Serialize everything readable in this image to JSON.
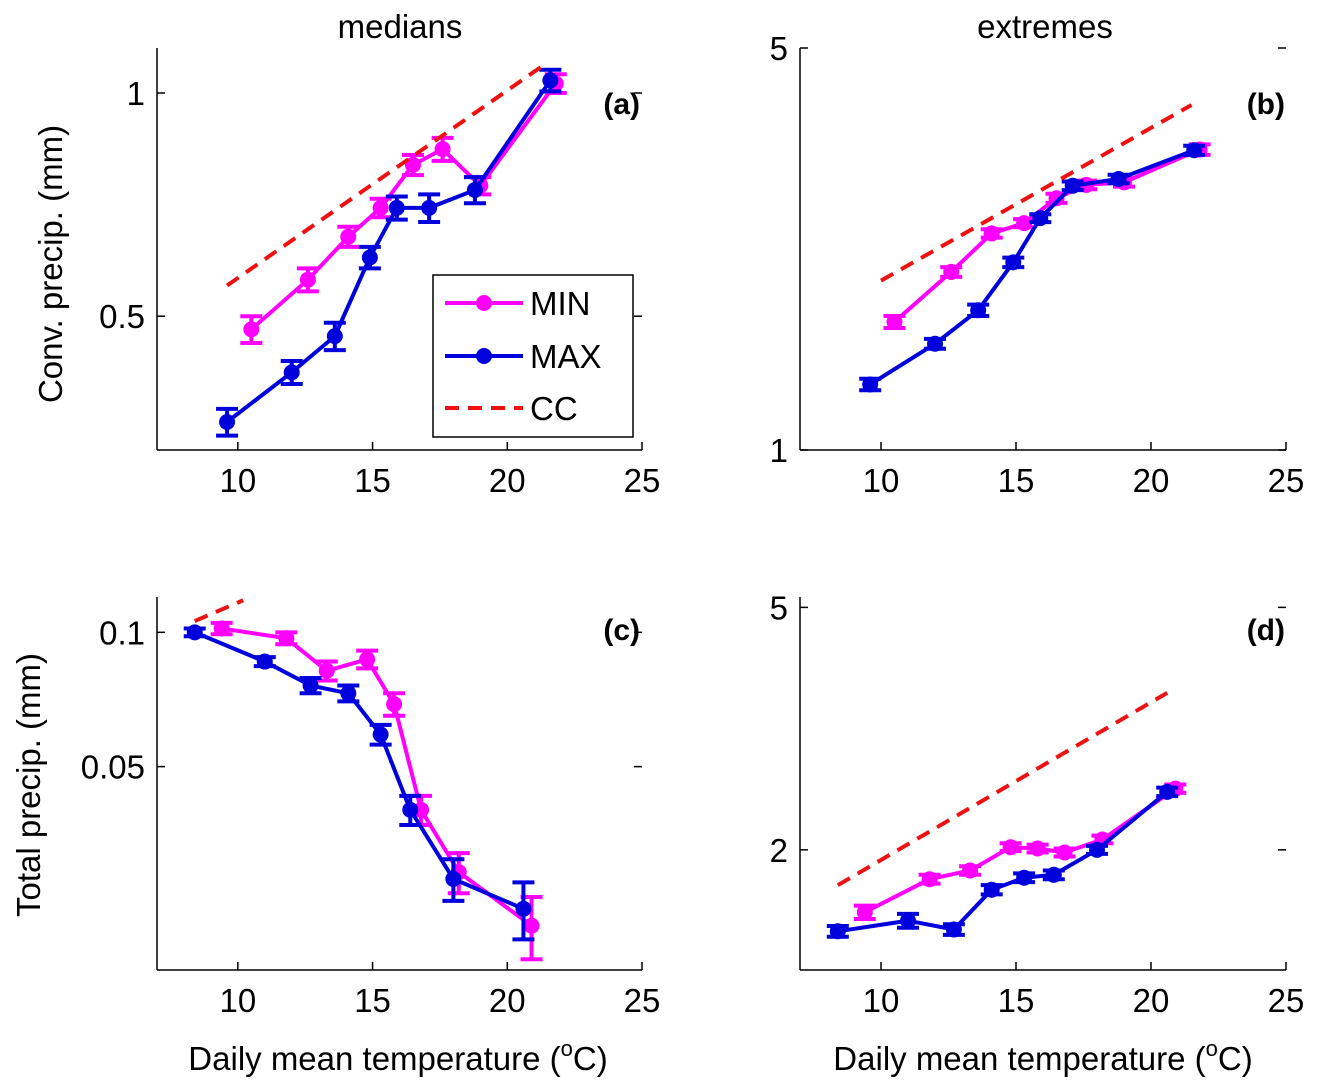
{
  "figure": {
    "column_titles": [
      "medians",
      "extremes"
    ],
    "xlabel_main": "Daily mean temperature (",
    "xlabel_sup": "o",
    "xlabel_end": "C)"
  },
  "legend": {
    "location": "inside panel (a), lower-right",
    "entries": [
      {
        "label": "MIN",
        "color": "#ff00ff",
        "style": "solid-dot"
      },
      {
        "label": "MAX",
        "color": "#0000dd",
        "style": "solid-dot"
      },
      {
        "label": "CC",
        "color": "#ee1111",
        "style": "dashed"
      }
    ]
  },
  "colors": {
    "min": "#ff00ff",
    "max": "#0000dd",
    "cc": "#ee1111",
    "axis": "#000000"
  },
  "chart_data": [
    {
      "type": "line",
      "panel": "(a)",
      "title": "medians",
      "ylabel": "Conv. precip. (mm)",
      "xlabel": "",
      "yscale": "log",
      "xlim": [
        7,
        25
      ],
      "ylim": [
        0.33,
        1.15
      ],
      "xticks": [
        10,
        15,
        20,
        25
      ],
      "yticks": [
        {
          "value": 0.5,
          "label": "0.5"
        },
        {
          "value": 1,
          "label": "1"
        }
      ],
      "series": [
        {
          "name": "MIN",
          "x": [
            10.5,
            12.6,
            14.1,
            15.3,
            16.5,
            17.6,
            19.0,
            21.8
          ],
          "y": [
            0.48,
            0.56,
            0.64,
            0.7,
            0.8,
            0.84,
            0.75,
            1.03
          ],
          "err": [
            0.02,
            0.02,
            0.02,
            0.02,
            0.025,
            0.03,
            0.02,
            0.03
          ]
        },
        {
          "name": "MAX",
          "x": [
            9.6,
            12.0,
            13.6,
            14.9,
            15.9,
            17.1,
            18.8,
            21.6
          ],
          "y": [
            0.36,
            0.42,
            0.47,
            0.6,
            0.7,
            0.7,
            0.74,
            1.04
          ],
          "err": [
            0.015,
            0.015,
            0.02,
            0.02,
            0.025,
            0.03,
            0.03,
            0.035
          ]
        },
        {
          "name": "CC",
          "x": [
            9.6,
            21.5
          ],
          "y": [
            0.55,
            1.1
          ]
        }
      ]
    },
    {
      "type": "line",
      "panel": "(b)",
      "title": "extremes",
      "ylabel": "",
      "xlabel": "",
      "yscale": "log",
      "xlim": [
        7,
        25
      ],
      "ylim": [
        1,
        5
      ],
      "xticks": [
        10,
        15,
        20,
        25
      ],
      "yticks": [
        {
          "value": 1,
          "label": "1"
        },
        {
          "value": 5,
          "label": "5"
        }
      ],
      "series": [
        {
          "name": "MIN",
          "x": [
            10.5,
            12.6,
            14.1,
            15.3,
            16.5,
            17.6,
            19.0,
            21.8
          ],
          "y": [
            1.67,
            2.04,
            2.38,
            2.48,
            2.74,
            2.89,
            2.92,
            3.33
          ],
          "err": [
            0.04,
            0.04,
            0.04,
            0.04,
            0.05,
            0.05,
            0.05,
            0.07
          ]
        },
        {
          "name": "MAX",
          "x": [
            9.6,
            12.0,
            13.6,
            14.9,
            15.9,
            17.1,
            18.8,
            21.6
          ],
          "y": [
            1.3,
            1.53,
            1.75,
            2.12,
            2.53,
            2.88,
            2.96,
            3.32
          ],
          "err": [
            0.03,
            0.03,
            0.04,
            0.04,
            0.04,
            0.05,
            0.05,
            0.06
          ]
        },
        {
          "name": "CC",
          "x": [
            10.0,
            21.5
          ],
          "y": [
            1.97,
            3.98
          ]
        }
      ]
    },
    {
      "type": "line",
      "panel": "(c)",
      "title": "",
      "ylabel": "Total precip. (mm)",
      "xlabel": "Daily mean temperature (oC)",
      "yscale": "log",
      "xlim": [
        7,
        25
      ],
      "ylim": [
        0.0175,
        0.12
      ],
      "xticks": [
        10,
        15,
        20,
        25
      ],
      "yticks": [
        {
          "value": 0.05,
          "label": "0.05"
        },
        {
          "value": 0.1,
          "label": "0.1"
        }
      ],
      "series": [
        {
          "name": "MIN",
          "x": [
            9.4,
            11.8,
            13.3,
            14.8,
            15.8,
            16.8,
            18.2,
            20.9
          ],
          "y": [
            0.102,
            0.097,
            0.082,
            0.087,
            0.069,
            0.04,
            0.029,
            0.022
          ],
          "err": [
            0.003,
            0.003,
            0.004,
            0.004,
            0.004,
            0.003,
            0.003,
            0.0035
          ]
        },
        {
          "name": "MAX",
          "x": [
            8.4,
            11.0,
            12.7,
            14.1,
            15.3,
            16.4,
            18.0,
            20.6
          ],
          "y": [
            0.1,
            0.086,
            0.076,
            0.073,
            0.059,
            0.04,
            0.028,
            0.024
          ],
          "err": [
            0.002,
            0.002,
            0.003,
            0.003,
            0.003,
            0.003,
            0.003,
            0.0035
          ]
        },
        {
          "name": "CC",
          "x": [
            8.4,
            10.2
          ],
          "y": [
            0.106,
            0.118
          ]
        }
      ]
    },
    {
      "type": "line",
      "panel": "(d)",
      "title": "",
      "ylabel": "",
      "xlabel": "Daily mean temperature (oC)",
      "yscale": "log",
      "xlim": [
        7,
        25
      ],
      "ylim": [
        1.27,
        5.2
      ],
      "xticks": [
        10,
        15,
        20,
        25
      ],
      "yticks": [
        {
          "value": 2,
          "label": "2"
        },
        {
          "value": 5,
          "label": "5"
        }
      ],
      "series": [
        {
          "name": "MIN",
          "x": [
            9.4,
            11.8,
            13.3,
            14.8,
            15.8,
            16.8,
            18.2,
            20.9
          ],
          "y": [
            1.58,
            1.79,
            1.85,
            2.02,
            2.01,
            1.98,
            2.08,
            2.52
          ],
          "err": [
            0.04,
            0.03,
            0.03,
            0.03,
            0.03,
            0.03,
            0.03,
            0.04
          ]
        },
        {
          "name": "MAX",
          "x": [
            8.4,
            11.0,
            12.7,
            14.1,
            15.3,
            16.4,
            18.0,
            20.6
          ],
          "y": [
            1.47,
            1.53,
            1.48,
            1.72,
            1.8,
            1.82,
            2.0,
            2.49
          ],
          "err": [
            0.03,
            0.04,
            0.03,
            0.03,
            0.03,
            0.03,
            0.03,
            0.04
          ]
        },
        {
          "name": "CC",
          "x": [
            8.4,
            20.6
          ],
          "y": [
            1.75,
            3.62
          ]
        }
      ]
    }
  ]
}
